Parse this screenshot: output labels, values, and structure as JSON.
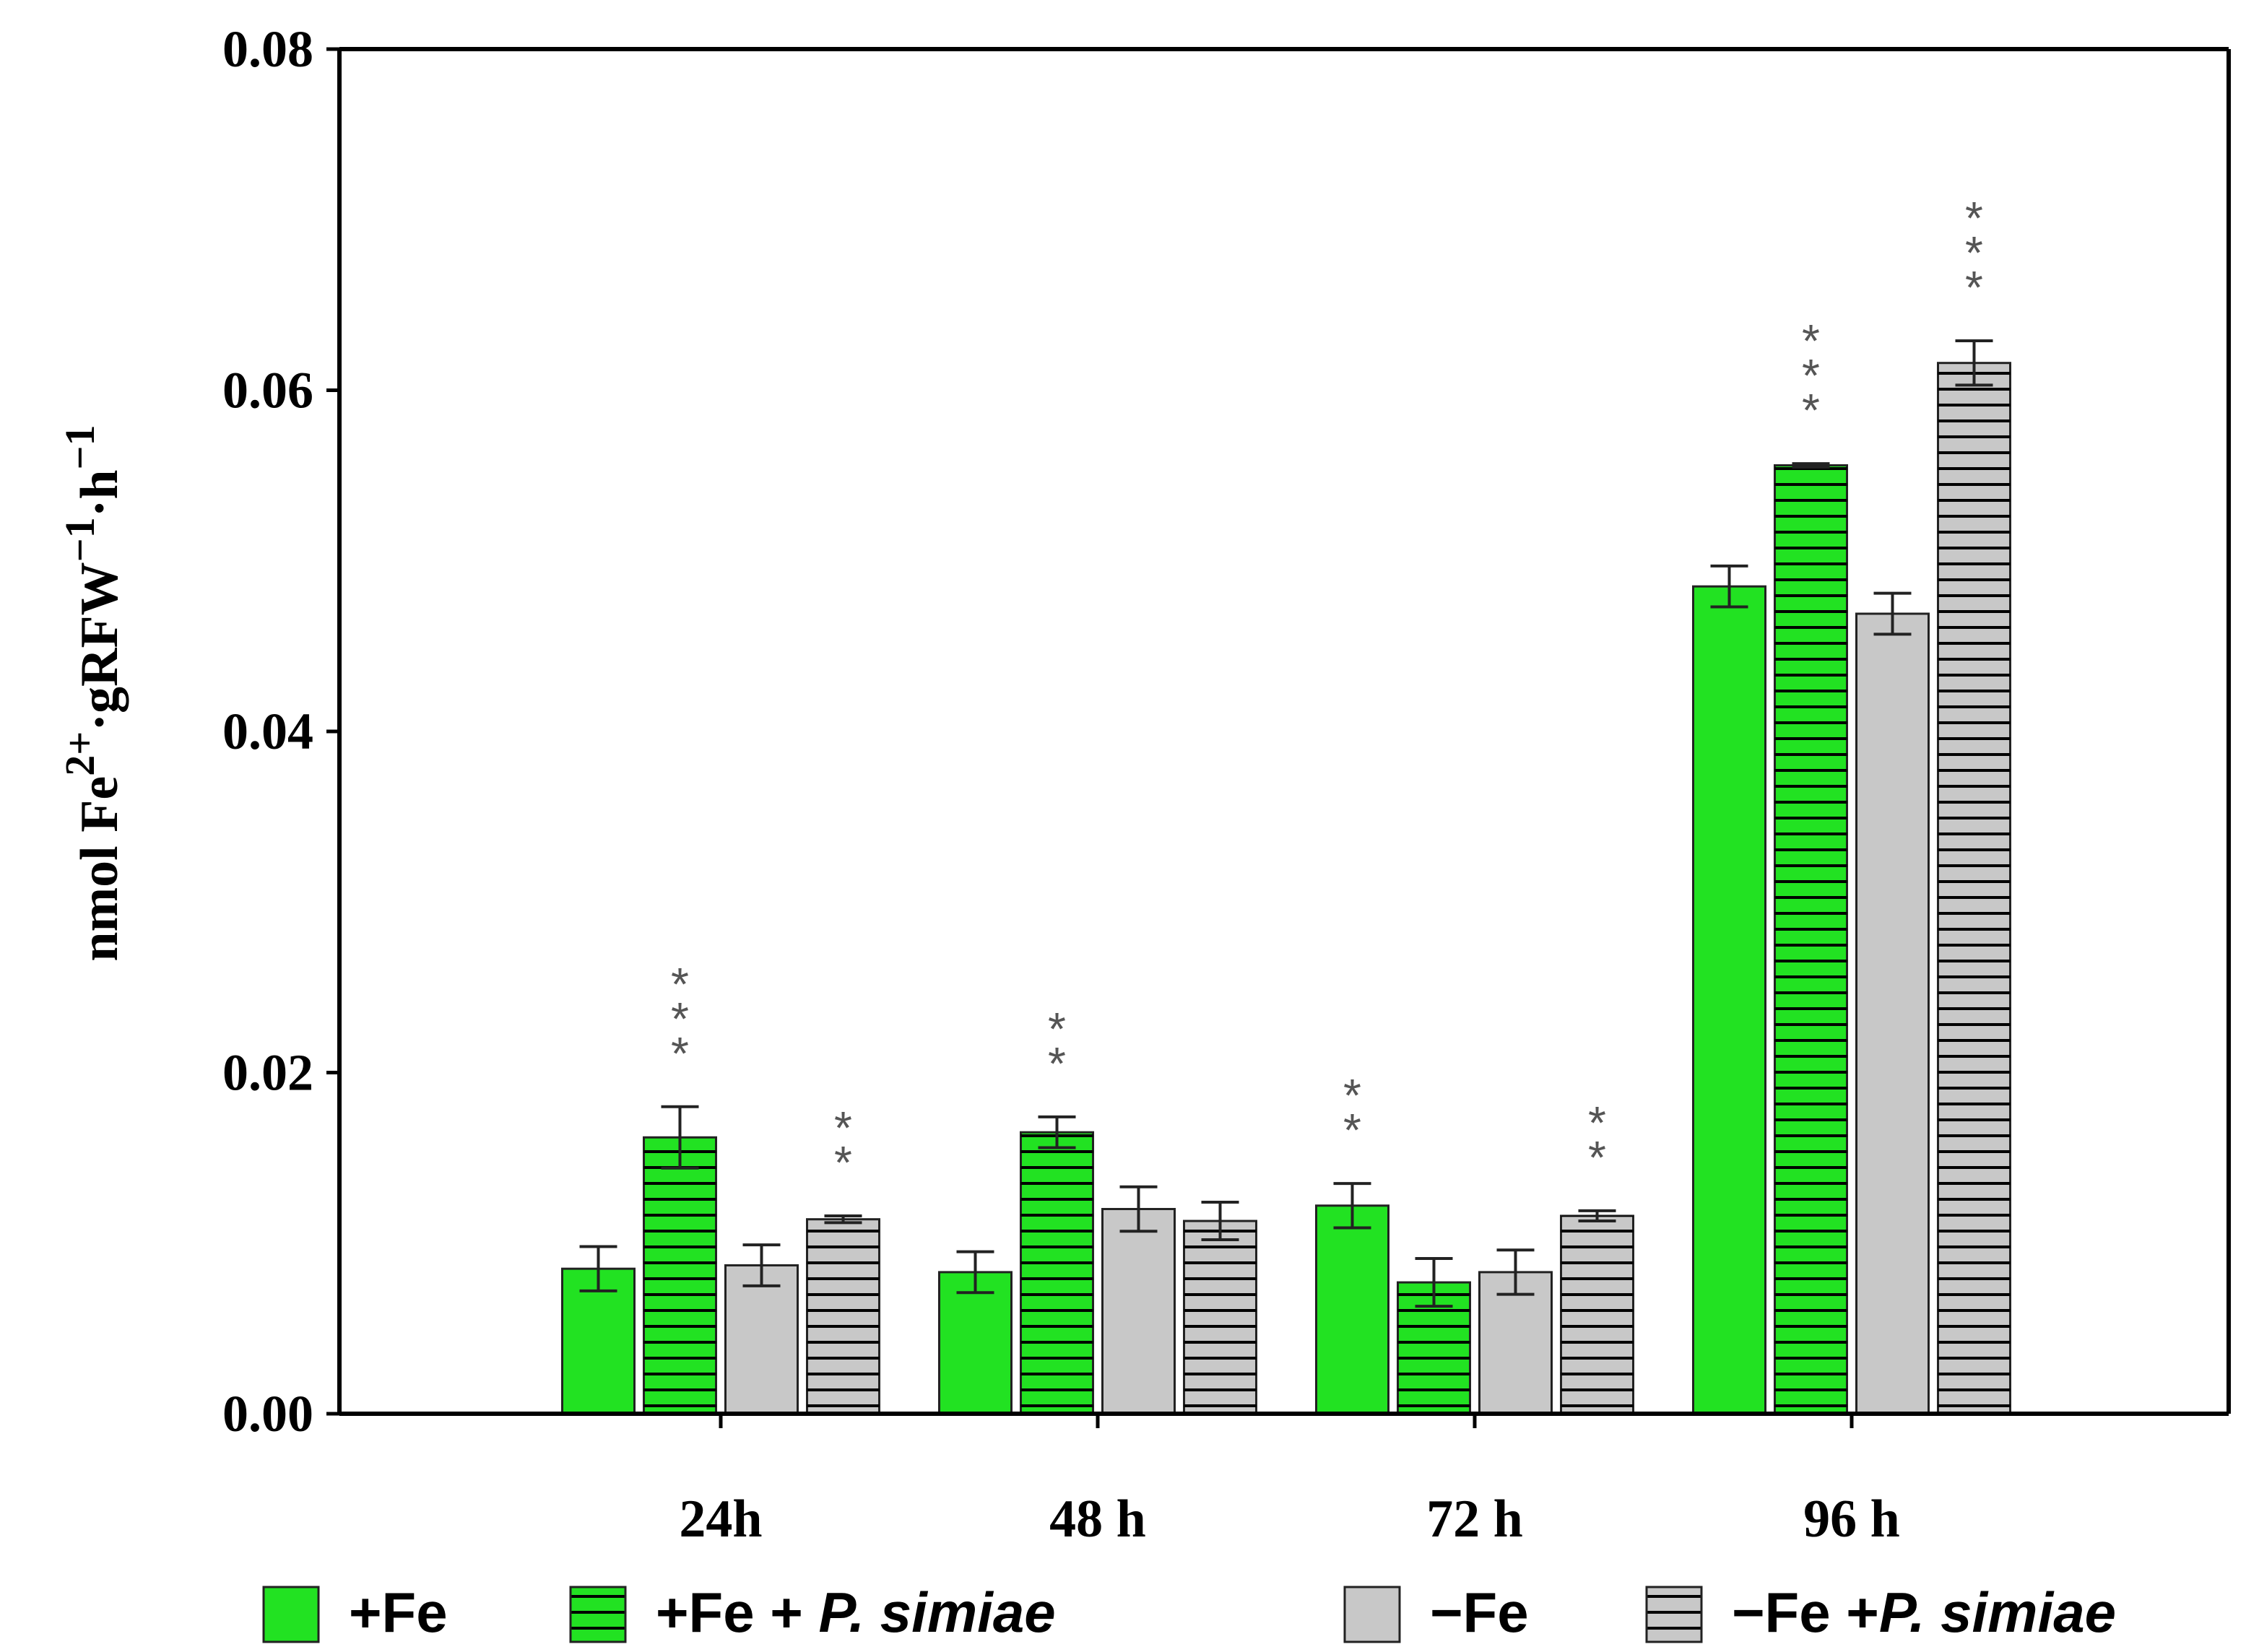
{
  "chart_data": {
    "type": "bar",
    "ylabel_parts": {
      "prefix": "nmol Fe",
      "sup1": "2+",
      "mid": "·gRFW",
      "sup2": "−1",
      "mid2": "·h",
      "sup3": "−1"
    },
    "ylim": [
      0,
      0.08
    ],
    "yticks": [
      "0.00",
      "0.02",
      "0.04",
      "0.06",
      "0.08"
    ],
    "ytick_values": [
      0,
      0.02,
      0.04,
      0.06,
      0.08
    ],
    "categories": [
      "24h",
      "48 h",
      "72 h",
      "96 h"
    ],
    "series": [
      {
        "name": "+Fe",
        "color": "#22e222",
        "pattern": "solid",
        "values": [
          0.0085,
          0.0083,
          0.0122,
          0.0485
        ],
        "errors": [
          0.0013,
          0.0012,
          0.0013,
          0.0012
        ],
        "significance": [
          "",
          "",
          "**",
          ""
        ]
      },
      {
        "name": "+Fe + P. simiae",
        "color": "#22e222",
        "pattern": "hatched",
        "values": [
          0.0162,
          0.0165,
          0.0077,
          0.0556
        ],
        "errors": [
          0.0018,
          0.0009,
          0.0014,
          0.0001
        ],
        "significance": [
          "***",
          "**",
          "",
          "***"
        ]
      },
      {
        "name": "−Fe",
        "color": "#c8c8c8",
        "pattern": "solid",
        "values": [
          0.0087,
          0.012,
          0.0083,
          0.0469
        ],
        "errors": [
          0.0012,
          0.0013,
          0.0013,
          0.0012
        ],
        "significance": [
          "",
          "",
          "",
          ""
        ]
      },
      {
        "name": "−Fe +P. simiae",
        "color": "#c8c8c8",
        "pattern": "hatched",
        "values": [
          0.0114,
          0.0113,
          0.0116,
          0.0616
        ],
        "errors": [
          0.0002,
          0.0011,
          0.0003,
          0.0013
        ],
        "significance": [
          "**",
          "",
          "**",
          "***"
        ]
      }
    ],
    "legend": [
      {
        "label_main": "+Fe",
        "label_italic": ""
      },
      {
        "label_main": "+Fe + ",
        "label_italic": "P. simiae"
      },
      {
        "label_main": "−Fe",
        "label_italic": ""
      },
      {
        "label_main": "−Fe +",
        "label_italic": "P. simiae"
      }
    ],
    "legend_position": "bottom",
    "grid": false
  }
}
